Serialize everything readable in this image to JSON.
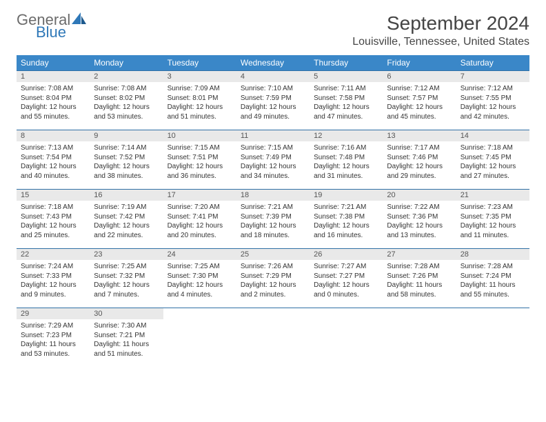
{
  "logo": {
    "general": "General",
    "blue": "Blue"
  },
  "title": "September 2024",
  "location": "Louisville, Tennessee, United States",
  "colors": {
    "header_bg": "#3a87c8",
    "header_text": "#ffffff",
    "daynum_bg": "#e9e9e9",
    "row_border": "#2f6fa5",
    "logo_gray": "#6b6b6b",
    "logo_blue": "#2f78b8"
  },
  "day_headers": [
    "Sunday",
    "Monday",
    "Tuesday",
    "Wednesday",
    "Thursday",
    "Friday",
    "Saturday"
  ],
  "days": [
    {
      "n": "1",
      "sr": "Sunrise: 7:08 AM",
      "ss": "Sunset: 8:04 PM",
      "dl": "Daylight: 12 hours and 55 minutes."
    },
    {
      "n": "2",
      "sr": "Sunrise: 7:08 AM",
      "ss": "Sunset: 8:02 PM",
      "dl": "Daylight: 12 hours and 53 minutes."
    },
    {
      "n": "3",
      "sr": "Sunrise: 7:09 AM",
      "ss": "Sunset: 8:01 PM",
      "dl": "Daylight: 12 hours and 51 minutes."
    },
    {
      "n": "4",
      "sr": "Sunrise: 7:10 AM",
      "ss": "Sunset: 7:59 PM",
      "dl": "Daylight: 12 hours and 49 minutes."
    },
    {
      "n": "5",
      "sr": "Sunrise: 7:11 AM",
      "ss": "Sunset: 7:58 PM",
      "dl": "Daylight: 12 hours and 47 minutes."
    },
    {
      "n": "6",
      "sr": "Sunrise: 7:12 AM",
      "ss": "Sunset: 7:57 PM",
      "dl": "Daylight: 12 hours and 45 minutes."
    },
    {
      "n": "7",
      "sr": "Sunrise: 7:12 AM",
      "ss": "Sunset: 7:55 PM",
      "dl": "Daylight: 12 hours and 42 minutes."
    },
    {
      "n": "8",
      "sr": "Sunrise: 7:13 AM",
      "ss": "Sunset: 7:54 PM",
      "dl": "Daylight: 12 hours and 40 minutes."
    },
    {
      "n": "9",
      "sr": "Sunrise: 7:14 AM",
      "ss": "Sunset: 7:52 PM",
      "dl": "Daylight: 12 hours and 38 minutes."
    },
    {
      "n": "10",
      "sr": "Sunrise: 7:15 AM",
      "ss": "Sunset: 7:51 PM",
      "dl": "Daylight: 12 hours and 36 minutes."
    },
    {
      "n": "11",
      "sr": "Sunrise: 7:15 AM",
      "ss": "Sunset: 7:49 PM",
      "dl": "Daylight: 12 hours and 34 minutes."
    },
    {
      "n": "12",
      "sr": "Sunrise: 7:16 AM",
      "ss": "Sunset: 7:48 PM",
      "dl": "Daylight: 12 hours and 31 minutes."
    },
    {
      "n": "13",
      "sr": "Sunrise: 7:17 AM",
      "ss": "Sunset: 7:46 PM",
      "dl": "Daylight: 12 hours and 29 minutes."
    },
    {
      "n": "14",
      "sr": "Sunrise: 7:18 AM",
      "ss": "Sunset: 7:45 PM",
      "dl": "Daylight: 12 hours and 27 minutes."
    },
    {
      "n": "15",
      "sr": "Sunrise: 7:18 AM",
      "ss": "Sunset: 7:43 PM",
      "dl": "Daylight: 12 hours and 25 minutes."
    },
    {
      "n": "16",
      "sr": "Sunrise: 7:19 AM",
      "ss": "Sunset: 7:42 PM",
      "dl": "Daylight: 12 hours and 22 minutes."
    },
    {
      "n": "17",
      "sr": "Sunrise: 7:20 AM",
      "ss": "Sunset: 7:41 PM",
      "dl": "Daylight: 12 hours and 20 minutes."
    },
    {
      "n": "18",
      "sr": "Sunrise: 7:21 AM",
      "ss": "Sunset: 7:39 PM",
      "dl": "Daylight: 12 hours and 18 minutes."
    },
    {
      "n": "19",
      "sr": "Sunrise: 7:21 AM",
      "ss": "Sunset: 7:38 PM",
      "dl": "Daylight: 12 hours and 16 minutes."
    },
    {
      "n": "20",
      "sr": "Sunrise: 7:22 AM",
      "ss": "Sunset: 7:36 PM",
      "dl": "Daylight: 12 hours and 13 minutes."
    },
    {
      "n": "21",
      "sr": "Sunrise: 7:23 AM",
      "ss": "Sunset: 7:35 PM",
      "dl": "Daylight: 12 hours and 11 minutes."
    },
    {
      "n": "22",
      "sr": "Sunrise: 7:24 AM",
      "ss": "Sunset: 7:33 PM",
      "dl": "Daylight: 12 hours and 9 minutes."
    },
    {
      "n": "23",
      "sr": "Sunrise: 7:25 AM",
      "ss": "Sunset: 7:32 PM",
      "dl": "Daylight: 12 hours and 7 minutes."
    },
    {
      "n": "24",
      "sr": "Sunrise: 7:25 AM",
      "ss": "Sunset: 7:30 PM",
      "dl": "Daylight: 12 hours and 4 minutes."
    },
    {
      "n": "25",
      "sr": "Sunrise: 7:26 AM",
      "ss": "Sunset: 7:29 PM",
      "dl": "Daylight: 12 hours and 2 minutes."
    },
    {
      "n": "26",
      "sr": "Sunrise: 7:27 AM",
      "ss": "Sunset: 7:27 PM",
      "dl": "Daylight: 12 hours and 0 minutes."
    },
    {
      "n": "27",
      "sr": "Sunrise: 7:28 AM",
      "ss": "Sunset: 7:26 PM",
      "dl": "Daylight: 11 hours and 58 minutes."
    },
    {
      "n": "28",
      "sr": "Sunrise: 7:28 AM",
      "ss": "Sunset: 7:24 PM",
      "dl": "Daylight: 11 hours and 55 minutes."
    },
    {
      "n": "29",
      "sr": "Sunrise: 7:29 AM",
      "ss": "Sunset: 7:23 PM",
      "dl": "Daylight: 11 hours and 53 minutes."
    },
    {
      "n": "30",
      "sr": "Sunrise: 7:30 AM",
      "ss": "Sunset: 7:21 PM",
      "dl": "Daylight: 11 hours and 51 minutes."
    }
  ]
}
